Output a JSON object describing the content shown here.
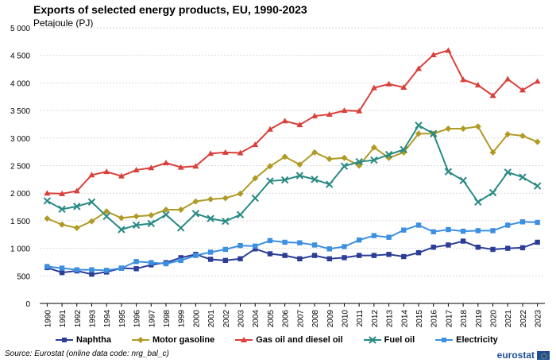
{
  "title": "Exports of selected energy products, EU, 1990-2023",
  "subtitle": "Petajoule (PJ)",
  "source": "Source: Eurostat (online data code: nrg_bal_c)",
  "logo_text": "eurostat",
  "chart_data": {
    "type": "line",
    "title": "Exports of selected energy products, EU, 1990-2023",
    "ylabel": "Petajoule (PJ)",
    "xlabel": "",
    "ylim": [
      0,
      5000
    ],
    "yticks": [
      "0",
      "500",
      "1 000",
      "1 500",
      "2 000",
      "2 500",
      "3 000",
      "3 500",
      "4 000",
      "4 500",
      "5 000"
    ],
    "grid": true,
    "legend_position": "bottom",
    "categories": [
      "1990",
      "1991",
      "1992",
      "1993",
      "1994",
      "1995",
      "1996",
      "1997",
      "1998",
      "1999",
      "2000",
      "2001",
      "2002",
      "2003",
      "2004",
      "2005",
      "2006",
      "2007",
      "2008",
      "2009",
      "2010",
      "2011",
      "2012",
      "2013",
      "2014",
      "2015",
      "2016",
      "2017",
      "2018",
      "2019",
      "2020",
      "2021",
      "2022",
      "2023"
    ],
    "series": [
      {
        "name": "Naphtha",
        "color": "#2b3d96",
        "marker": "square",
        "values": [
          650,
          560,
          590,
          530,
          570,
          640,
          630,
          700,
          740,
          830,
          890,
          800,
          780,
          810,
          990,
          900,
          870,
          810,
          870,
          810,
          830,
          870,
          870,
          890,
          850,
          920,
          1020,
          1060,
          1130,
          1020,
          980,
          1000,
          1010,
          1110
        ]
      },
      {
        "name": "Motor gasoline",
        "color": "#b09a26",
        "marker": "diamond",
        "values": [
          1540,
          1430,
          1370,
          1490,
          1670,
          1550,
          1580,
          1600,
          1700,
          1700,
          1850,
          1890,
          1910,
          1990,
          2270,
          2490,
          2660,
          2520,
          2740,
          2620,
          2640,
          2500,
          2830,
          2640,
          2740,
          3080,
          3080,
          3170,
          3170,
          3210,
          2740,
          3070,
          3040,
          2930
        ]
      },
      {
        "name": "Gas oil and diesel oil",
        "color": "#d9403b",
        "marker": "triangle",
        "values": [
          2000,
          1990,
          2040,
          2330,
          2390,
          2310,
          2420,
          2460,
          2550,
          2470,
          2490,
          2720,
          2740,
          2730,
          2880,
          3160,
          3310,
          3240,
          3400,
          3430,
          3500,
          3490,
          3910,
          3980,
          3920,
          4260,
          4510,
          4590,
          4060,
          3960,
          3770,
          4070,
          3870,
          4030
        ]
      },
      {
        "name": "Fuel oil",
        "color": "#2a8a84",
        "marker": "star",
        "values": [
          1860,
          1710,
          1760,
          1840,
          1580,
          1340,
          1420,
          1450,
          1610,
          1370,
          1630,
          1540,
          1490,
          1610,
          1910,
          2220,
          2240,
          2320,
          2250,
          2160,
          2490,
          2570,
          2600,
          2700,
          2790,
          3230,
          3080,
          2390,
          2230,
          1840,
          2010,
          2380,
          2290,
          2130
        ]
      },
      {
        "name": "Electricity",
        "color": "#3d8fe0",
        "marker": "square",
        "values": [
          670,
          640,
          610,
          610,
          600,
          640,
          760,
          740,
          720,
          780,
          870,
          930,
          980,
          1050,
          1040,
          1140,
          1110,
          1100,
          1060,
          990,
          1030,
          1150,
          1230,
          1200,
          1330,
          1420,
          1300,
          1340,
          1310,
          1320,
          1320,
          1420,
          1480,
          1470
        ]
      }
    ]
  }
}
